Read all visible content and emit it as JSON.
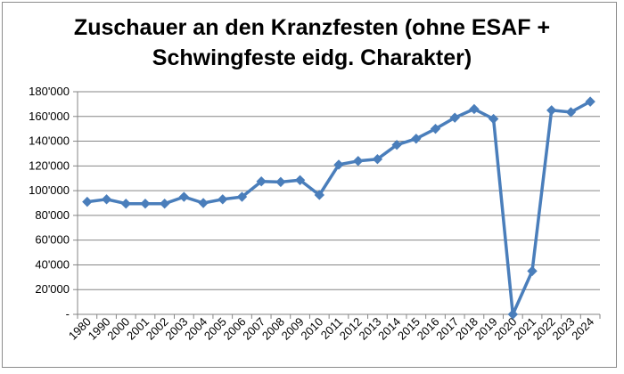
{
  "chart_data": {
    "type": "line",
    "title_lines": [
      "Zuschauer an den Kranzfesten (ohne ESAF +",
      "Schwingfeste eidg. Charakter)"
    ],
    "categories": [
      "1980",
      "1990",
      "2000",
      "2001",
      "2002",
      "2003",
      "2004",
      "2005",
      "2006",
      "2007",
      "2008",
      "2009",
      "2010",
      "2011",
      "2012",
      "2013",
      "2014",
      "2015",
      "2016",
      "2017",
      "2018",
      "2019",
      "2020",
      "2021",
      "2022",
      "2023",
      "2024"
    ],
    "series": [
      {
        "values": [
          91000,
          93000,
          89500,
          89500,
          89500,
          95000,
          90000,
          93000,
          95000,
          107500,
          107000,
          108500,
          96500,
          121000,
          124000,
          125500,
          137000,
          142000,
          150000,
          159000,
          166000,
          158000,
          0,
          35000,
          165000,
          163500,
          172000
        ]
      }
    ],
    "ylim": [
      0,
      180000
    ],
    "y_ticks": [
      {
        "value": 0,
        "label": "-"
      },
      {
        "value": 20000,
        "label": "20'000"
      },
      {
        "value": 40000,
        "label": "40'000"
      },
      {
        "value": 60000,
        "label": "60'000"
      },
      {
        "value": 80000,
        "label": "80'000"
      },
      {
        "value": 100000,
        "label": "100'000"
      },
      {
        "value": 120000,
        "label": "120'000"
      },
      {
        "value": 140000,
        "label": "140'000"
      },
      {
        "value": 160000,
        "label": "160'000"
      },
      {
        "value": 180000,
        "label": "180'000"
      }
    ],
    "grid": true,
    "legend": "none",
    "line_color": "#4a7ebb",
    "grid_color": "#868686"
  }
}
